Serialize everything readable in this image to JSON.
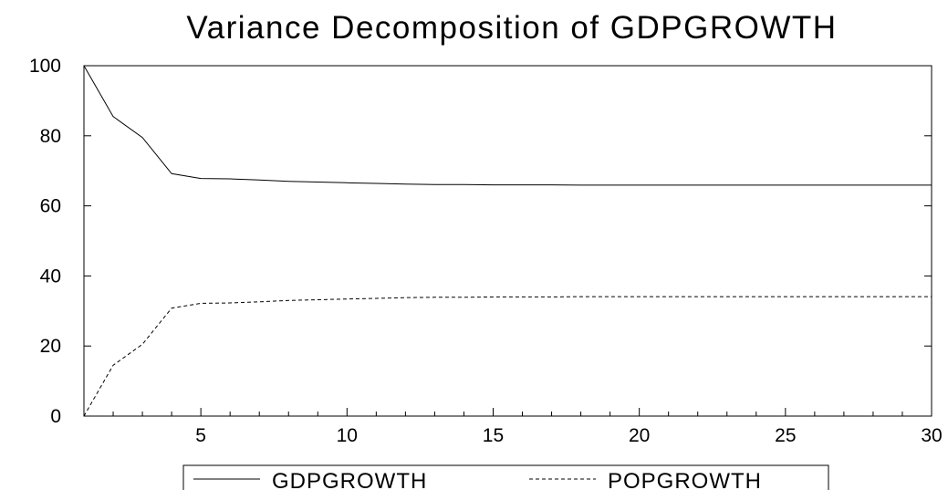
{
  "chart_data": {
    "type": "line",
    "title": "Variance Decomposition of GDPGROWTH",
    "xlabel": "",
    "ylabel": "",
    "xlim": [
      1,
      30
    ],
    "ylim": [
      0,
      100
    ],
    "x_ticks": [
      5,
      10,
      15,
      20,
      25,
      30
    ],
    "y_ticks": [
      0,
      20,
      40,
      60,
      80,
      100
    ],
    "grid": false,
    "legend_position": "bottom",
    "x": [
      1,
      2,
      3,
      4,
      5,
      6,
      7,
      8,
      9,
      10,
      11,
      12,
      13,
      14,
      15,
      16,
      17,
      18,
      19,
      20,
      21,
      22,
      23,
      24,
      25,
      26,
      27,
      28,
      29,
      30
    ],
    "series": [
      {
        "name": "GDPGROWTH",
        "line_style": "solid",
        "color": "#000000",
        "values": [
          100,
          85.5,
          79.5,
          69.2,
          67.8,
          67.7,
          67.4,
          67.0,
          66.8,
          66.6,
          66.4,
          66.2,
          66.1,
          66.1,
          66.0,
          66.0,
          66.0,
          65.9,
          65.9,
          65.9,
          65.9,
          65.9,
          65.9,
          65.9,
          65.9,
          65.9,
          65.9,
          65.9,
          65.9,
          65.9
        ]
      },
      {
        "name": "POPGROWTH",
        "line_style": "dashed",
        "color": "#000000",
        "values": [
          0,
          14.5,
          20.5,
          30.8,
          32.2,
          32.3,
          32.6,
          33.0,
          33.2,
          33.4,
          33.6,
          33.8,
          33.9,
          33.9,
          34.0,
          34.0,
          34.0,
          34.1,
          34.1,
          34.1,
          34.1,
          34.1,
          34.1,
          34.1,
          34.1,
          34.1,
          34.1,
          34.1,
          34.1,
          34.1
        ]
      }
    ]
  }
}
